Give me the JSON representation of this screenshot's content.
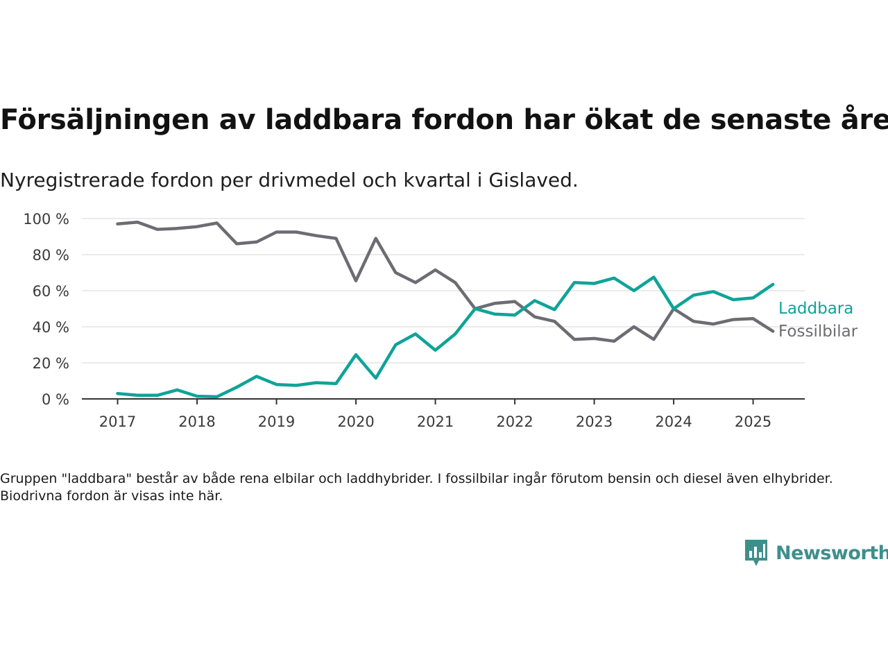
{
  "title": "Försäljningen av laddbara fordon har ökat de senaste åren",
  "subtitle": "Nyregistrerade fordon per drivmedel och kvartal i Gislaved.",
  "footnote": "Gruppen \"laddbara\" består av både rena elbilar och laddhybrider. I fossilbilar ingår förutom bensin och diesel även elhybrider. Biodrivna fordon är visas inte här.",
  "brand": {
    "name": "Newsworthy",
    "color": "#3d8f8c",
    "icon": "newsworthy-logo-icon"
  },
  "chart_data": {
    "type": "line",
    "x": [
      2017.0,
      2017.25,
      2017.5,
      2017.75,
      2018.0,
      2018.25,
      2018.5,
      2018.75,
      2019.0,
      2019.25,
      2019.5,
      2019.75,
      2020.0,
      2020.25,
      2020.5,
      2020.75,
      2021.0,
      2021.25,
      2021.5,
      2021.75,
      2022.0,
      2022.25,
      2022.5,
      2022.75,
      2023.0,
      2023.25,
      2023.5,
      2023.75,
      2024.0,
      2024.25,
      2024.5,
      2024.75,
      2025.0,
      2025.25
    ],
    "series": [
      {
        "name": "Laddbara",
        "color": "#0fa398",
        "values": [
          3,
          2,
          2,
          5,
          1.5,
          1.2,
          6.5,
          12.5,
          8,
          7.5,
          9,
          8.5,
          24.5,
          11.5,
          30,
          36,
          27,
          36,
          50,
          47,
          46.5,
          54.5,
          49.5,
          64.5,
          64,
          67,
          60,
          67.5,
          50,
          57.5,
          59.5,
          55,
          56,
          63.5
        ]
      },
      {
        "name": "Fossilbilar",
        "color": "#6d6c72",
        "values": [
          97,
          98,
          94,
          94.5,
          95.5,
          97.5,
          86,
          87,
          92.5,
          92.5,
          90.5,
          89,
          65.5,
          89,
          70,
          64.5,
          71.5,
          64.5,
          50,
          53,
          54,
          45.5,
          43,
          33,
          33.5,
          32,
          40,
          33,
          50,
          43,
          41.5,
          44,
          44.5,
          37.5
        ]
      }
    ],
    "xticks": [
      "2017",
      "2018",
      "2019",
      "2020",
      "2021",
      "2022",
      "2023",
      "2024",
      "2025"
    ],
    "xtick_values": [
      2017,
      2018,
      2019,
      2020,
      2021,
      2022,
      2023,
      2024,
      2025
    ],
    "yticks": [
      "0 %",
      "20 %",
      "40 %",
      "60 %",
      "80 %",
      "100 %"
    ],
    "ytick_values": [
      0,
      20,
      40,
      60,
      80,
      100
    ],
    "ylim": [
      0,
      100
    ],
    "xlim": [
      2016.55,
      2025.65
    ],
    "grid": true,
    "grid_color": "#dddddd",
    "legend": "inline labels at line ends (right)"
  }
}
